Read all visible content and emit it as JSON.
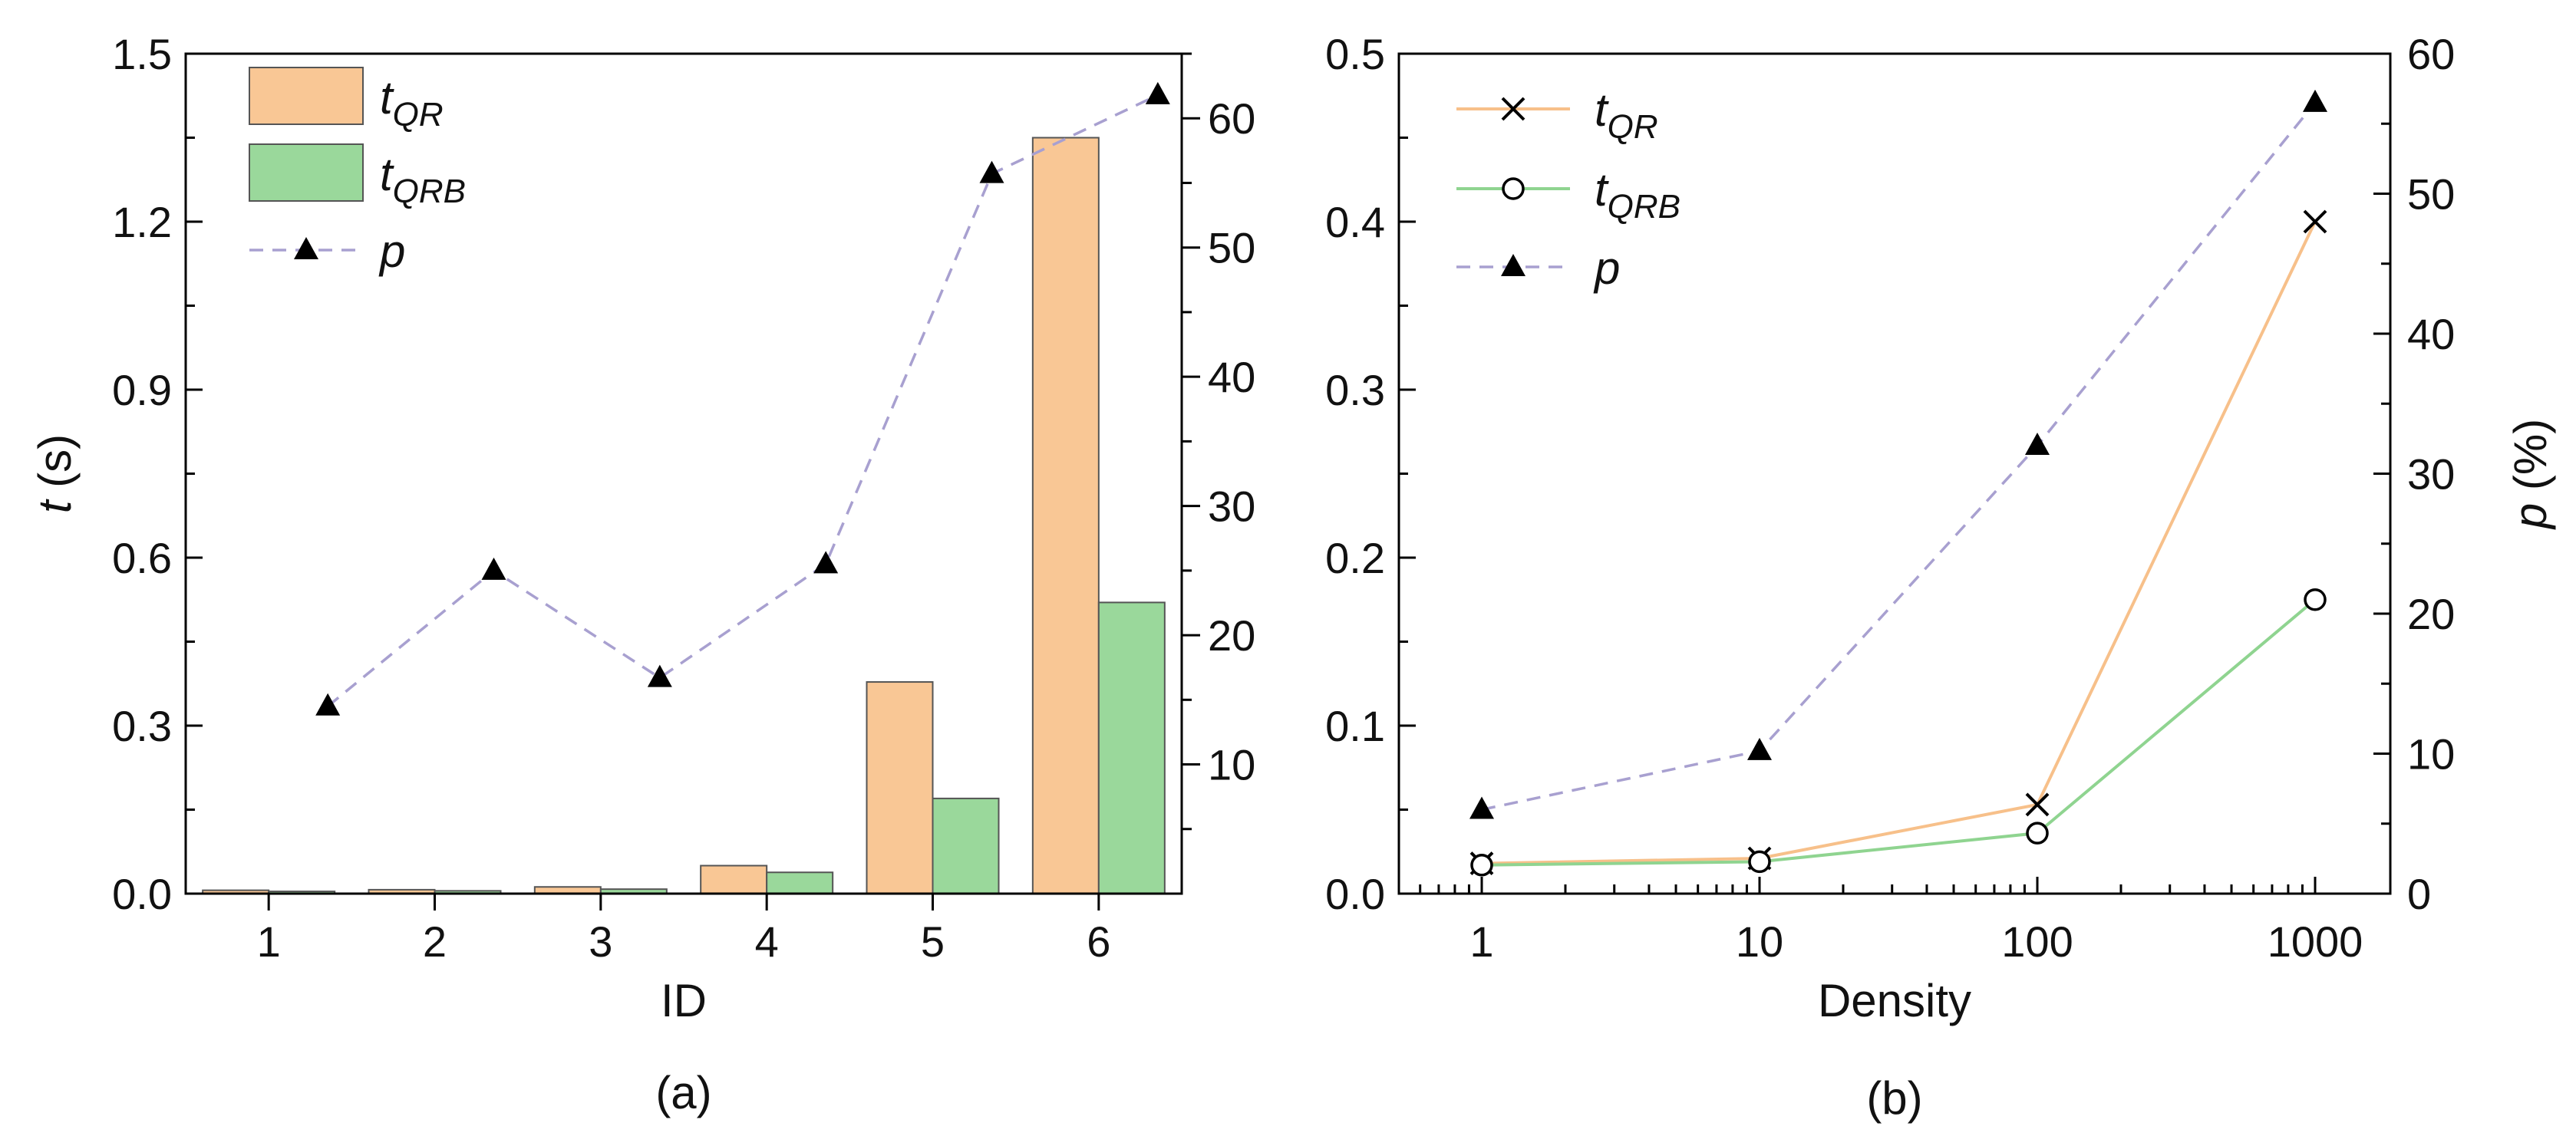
{
  "colors": {
    "t_qr": "#f9c795",
    "t_qr_line": "#f7c08a",
    "t_qrb": "#9ad89b",
    "t_qrb_line": "#8fd490",
    "p": "#a8a0d0",
    "marker": "#000000",
    "bar_edge": "#555555"
  },
  "chart_data": [
    {
      "id": "a",
      "type": "bar",
      "caption": "(a)",
      "xlabel": "ID",
      "ylabel_italic": "t",
      "ylabel_rest": " (s)",
      "categories": [
        "1",
        "2",
        "3",
        "4",
        "5",
        "6"
      ],
      "ylim": [
        0,
        1.5
      ],
      "yticks": [
        "0.0",
        "0.3",
        "0.6",
        "0.9",
        "1.2",
        "1.5"
      ],
      "y2lim": [
        0,
        65
      ],
      "y2ticks": [
        "10",
        "20",
        "30",
        "40",
        "50",
        "60"
      ],
      "series": [
        {
          "name": "t",
          "sub": "QR",
          "kind": "bar",
          "values": [
            0.006,
            0.007,
            0.012,
            0.05,
            0.378,
            1.35
          ]
        },
        {
          "name": "t",
          "sub": "QRB",
          "kind": "bar",
          "values": [
            0.004,
            0.005,
            0.008,
            0.038,
            0.17,
            0.52
          ]
        },
        {
          "name": "p",
          "sub": "",
          "kind": "line",
          "axis": "right",
          "values": [
            14.5,
            25.0,
            16.7,
            25.5,
            55.7,
            61.8
          ]
        }
      ]
    },
    {
      "id": "b",
      "type": "line",
      "caption": "(b)",
      "xlabel": "Density",
      "ylabel_italic": "p",
      "ylabel_rest": " (%)",
      "xscale": "log",
      "x": [
        1,
        10,
        100,
        1000
      ],
      "xticks": [
        "1",
        "10",
        "100",
        "1000"
      ],
      "ylim": [
        0,
        0.5
      ],
      "yticks": [
        "0.0",
        "0.1",
        "0.2",
        "0.3",
        "0.4",
        "0.5"
      ],
      "y2lim": [
        0,
        60
      ],
      "y2ticks": [
        "0",
        "10",
        "20",
        "30",
        "40",
        "50",
        "60"
      ],
      "series": [
        {
          "name": "t",
          "sub": "QR",
          "kind": "line",
          "marker": "x",
          "values": [
            0.018,
            0.021,
            0.053,
            0.4
          ]
        },
        {
          "name": "t",
          "sub": "QRB",
          "kind": "line",
          "marker": "circle",
          "values": [
            0.017,
            0.019,
            0.036,
            0.175
          ]
        },
        {
          "name": "p",
          "sub": "",
          "kind": "line",
          "axis": "right",
          "marker": "triangle",
          "values": [
            6.0,
            10.2,
            32.0,
            56.5
          ]
        }
      ]
    }
  ]
}
